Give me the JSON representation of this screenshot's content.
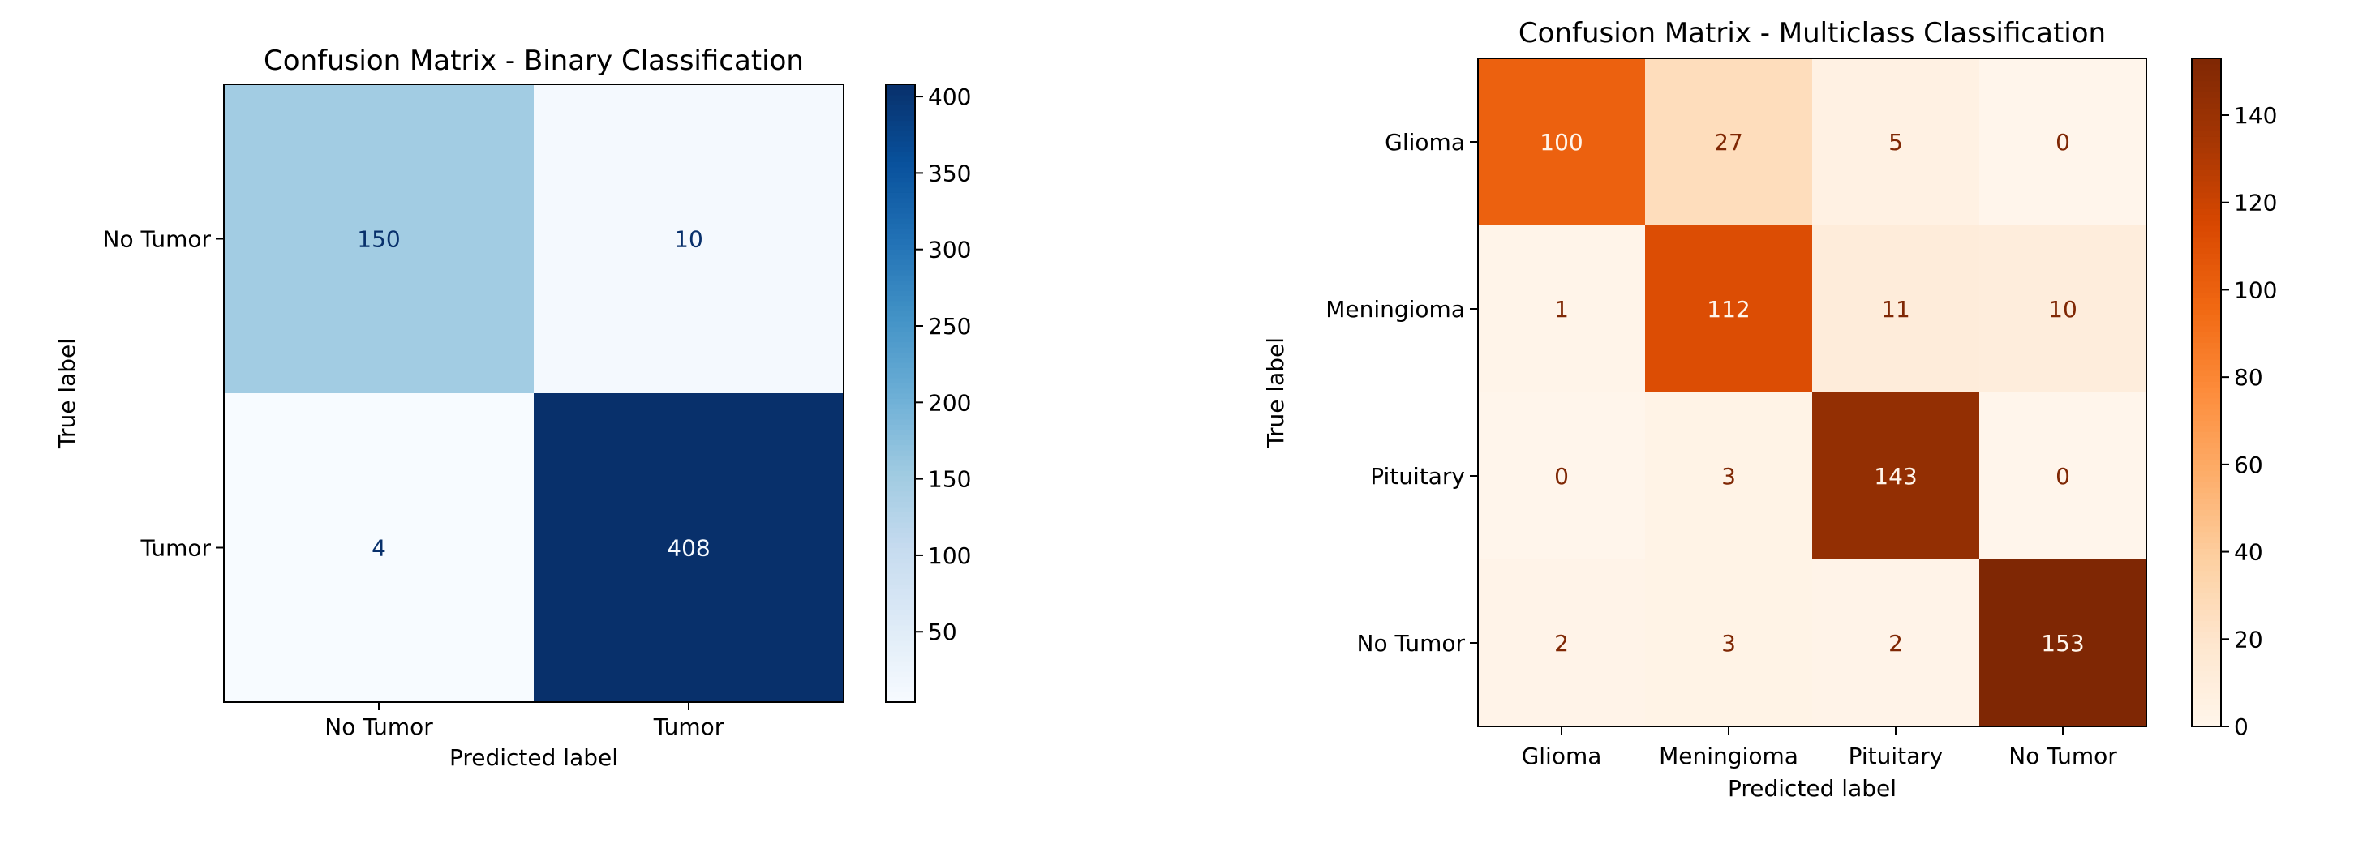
{
  "chart_data": [
    {
      "type": "heatmap",
      "title": "Confusion Matrix - Binary Classification",
      "xlabel": "Predicted label",
      "ylabel": "True label",
      "x_categories": [
        "No Tumor",
        "Tumor"
      ],
      "y_categories": [
        "No Tumor",
        "Tumor"
      ],
      "values": [
        [
          150,
          10
        ],
        [
          4,
          408
        ]
      ],
      "colormap": "Blues",
      "colorbar": {
        "min": 4,
        "max": 408,
        "ticks": [
          50,
          100,
          150,
          200,
          250,
          300,
          350,
          400
        ]
      }
    },
    {
      "type": "heatmap",
      "title": "Confusion Matrix - Multiclass Classification",
      "xlabel": "Predicted label",
      "ylabel": "True label",
      "x_categories": [
        "Glioma",
        "Meningioma",
        "Pituitary",
        "No Tumor"
      ],
      "y_categories": [
        "Glioma",
        "Meningioma",
        "Pituitary",
        "No Tumor"
      ],
      "values": [
        [
          100,
          27,
          5,
          0
        ],
        [
          1,
          112,
          11,
          10
        ],
        [
          0,
          3,
          143,
          0
        ],
        [
          2,
          3,
          2,
          153
        ]
      ],
      "colormap": "Oranges",
      "colorbar": {
        "min": 0,
        "max": 153,
        "ticks": [
          0,
          20,
          40,
          60,
          80,
          100,
          120,
          140
        ]
      }
    }
  ],
  "colors": {
    "blues": [
      "#f7fbff",
      "#deebf7",
      "#c6dbef",
      "#9ecae1",
      "#6baed6",
      "#4292c6",
      "#2171b5",
      "#08519c",
      "#08306b"
    ],
    "oranges": [
      "#fff5eb",
      "#fee6ce",
      "#fdd0a2",
      "#fdae6b",
      "#fd8d3c",
      "#f16913",
      "#d94801",
      "#a63603",
      "#7f2704"
    ],
    "blue_text_dark": "#08306b",
    "blue_text_light": "#f7fbff",
    "orange_text_dark": "#7f2704",
    "orange_text_light": "#fff5eb",
    "axis": "#000000"
  }
}
